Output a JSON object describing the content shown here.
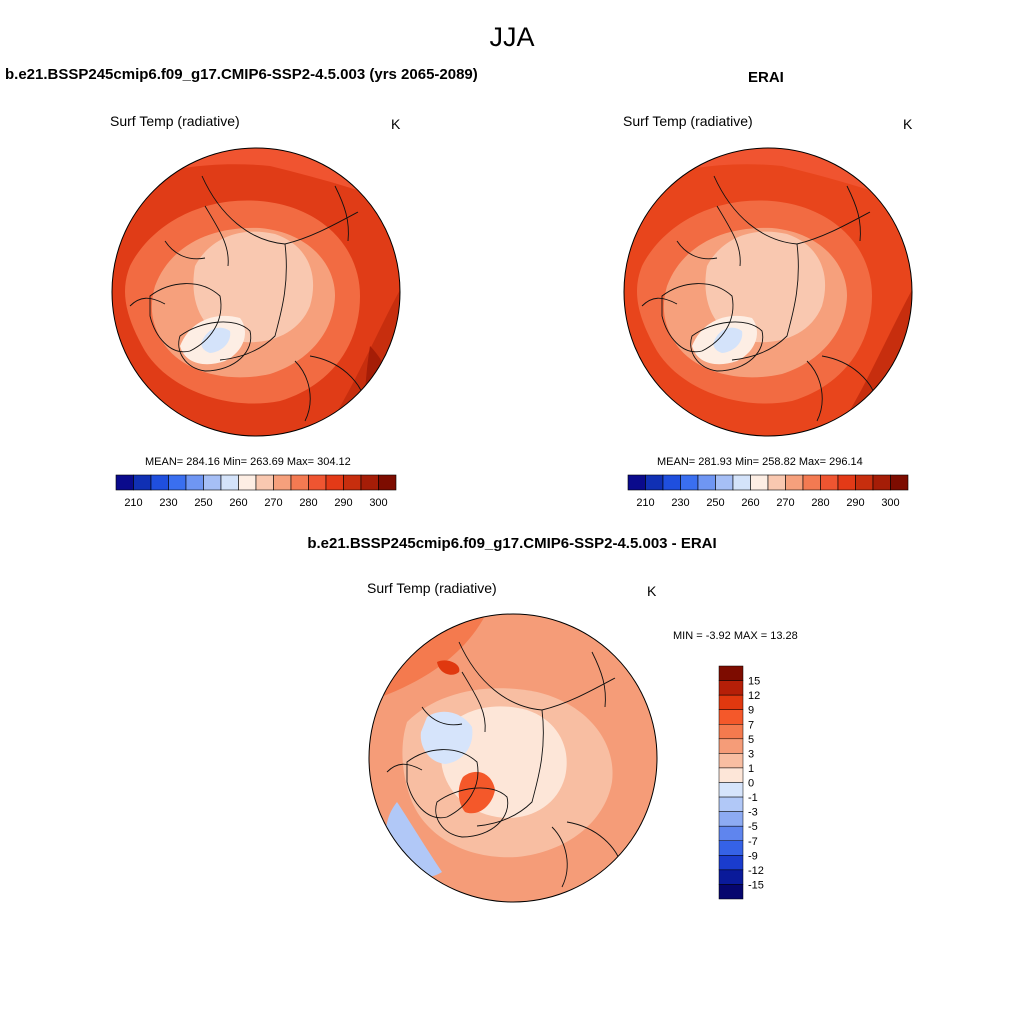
{
  "page": {
    "title": "JJA",
    "panel_titles": {
      "model": "b.e21.BSSP245cmip6.f09_g17.CMIP6-SSP2-4.5.003 (yrs 2065-2089)",
      "obs": "ERAI",
      "diff": "b.e21.BSSP245cmip6.f09_g17.CMIP6-SSP2-4.5.003 - ERAI"
    }
  },
  "chart_data": [
    {
      "type": "heatmap",
      "name": "model",
      "variable": "Surf Temp (radiative)",
      "units": "K",
      "stats": {
        "mean": "284.16",
        "min": "263.69",
        "max": "304.12"
      },
      "stats_text": "MEAN= 284.16  Min= 263.69  Max= 304.12",
      "projection": "north polar stereographic",
      "colorbar": {
        "levels": [
          205,
          210,
          220,
          230,
          240,
          250,
          255,
          260,
          265,
          270,
          275,
          280,
          285,
          290,
          295,
          300
        ],
        "tick_labels": [
          "210",
          "230",
          "250",
          "260",
          "270",
          "280",
          "290",
          "300"
        ],
        "colors": [
          "#0a0a8c",
          "#1030b4",
          "#1f4fde",
          "#3a6ff0",
          "#6f96f3",
          "#a6bff6",
          "#d4e3fa",
          "#fdeee4",
          "#f9c8b0",
          "#f6a07c",
          "#f37a52",
          "#ef5531",
          "#e33a17",
          "#c72e0e",
          "#a51d07",
          "#7d0c00"
        ]
      }
    },
    {
      "type": "heatmap",
      "name": "obs",
      "variable": "Surf Temp (radiative)",
      "units": "K",
      "stats": {
        "mean": "281.93",
        "min": "258.82",
        "max": "296.14"
      },
      "stats_text": "MEAN= 281.93  Min= 258.82  Max= 296.14",
      "projection": "north polar stereographic",
      "colorbar": {
        "levels": [
          205,
          210,
          220,
          230,
          240,
          250,
          255,
          260,
          265,
          270,
          275,
          280,
          285,
          290,
          295,
          300
        ],
        "tick_labels": [
          "210",
          "230",
          "250",
          "260",
          "270",
          "280",
          "290",
          "300"
        ],
        "colors": [
          "#0a0a8c",
          "#1030b4",
          "#1f4fde",
          "#3a6ff0",
          "#6f96f3",
          "#a6bff6",
          "#d4e3fa",
          "#fdeee4",
          "#f9c8b0",
          "#f6a07c",
          "#f37a52",
          "#ef5531",
          "#e33a17",
          "#c72e0e",
          "#a51d07",
          "#7d0c00"
        ]
      }
    },
    {
      "type": "heatmap",
      "name": "difference",
      "variable": "Surf Temp (radiative)",
      "units": "K",
      "stats": {
        "min": "-3.92",
        "max": "13.28"
      },
      "stats_text": "MIN =  -3.92 MAX =  13.28",
      "projection": "north polar stereographic",
      "colorbar": {
        "orientation": "vertical",
        "tick_labels": [
          "15",
          "12",
          "9",
          "7",
          "5",
          "3",
          "1",
          "0",
          "-1",
          "-3",
          "-5",
          "-7",
          "-9",
          "-12",
          "-15"
        ],
        "colors": [
          "#7d0c00",
          "#b51f08",
          "#e0380f",
          "#f4582a",
          "#f47a4e",
          "#f59c78",
          "#f8bea2",
          "#fde6d8",
          "#d6e4fb",
          "#b1c8f7",
          "#8dabf3",
          "#5f85ee",
          "#3562e6",
          "#1a3ccd",
          "#0a1a9a",
          "#06066e"
        ]
      }
    }
  ]
}
